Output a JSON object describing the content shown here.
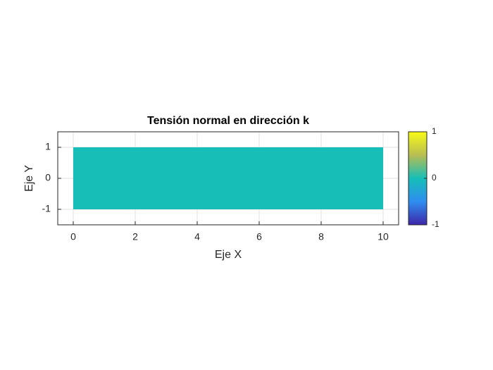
{
  "chart_data": {
    "type": "patch",
    "title": "Tensión normal en dirección k",
    "xlabel": "Eje X",
    "ylabel": "Eje Y",
    "xlim": [
      -0.5,
      10.5
    ],
    "ylim": [
      -1.5,
      1.5
    ],
    "xticks": [
      0,
      2,
      4,
      6,
      8,
      10
    ],
    "yticks": [
      -1,
      0,
      1
    ],
    "grid": true,
    "patch": {
      "x": [
        0,
        10,
        10,
        0
      ],
      "y": [
        -1,
        -1,
        1,
        1
      ],
      "value": 0
    },
    "colorbar": {
      "lim": [
        -1,
        1
      ],
      "ticks": [
        -1,
        0,
        1
      ],
      "colormap": [
        "#3e26a8",
        "#2e8ef0",
        "#16beb7",
        "#b8bd52",
        "#f9fb15"
      ]
    }
  }
}
